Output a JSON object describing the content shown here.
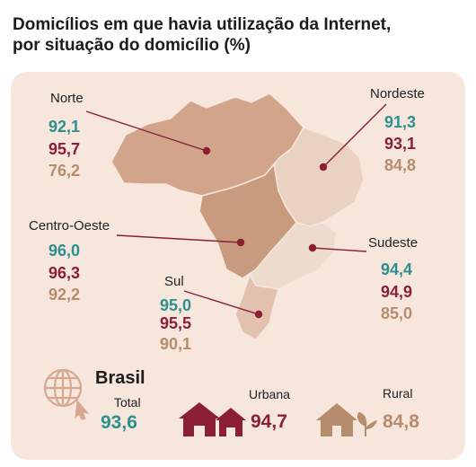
{
  "title_line1": "Domicílios em que havia utilização da Internet,",
  "title_line2": "por situação do domicílio (%)",
  "colors": {
    "urbana": "#2d8f8f",
    "total": "#8a1f35",
    "rural": "#b58d6d",
    "panel": "#f6e6dc"
  },
  "chart_data": {
    "type": "table",
    "unit": "%",
    "regions": [
      {
        "name": "Norte",
        "urbana": "92,1",
        "total": "95,7",
        "rural": "76,2"
      },
      {
        "name": "Nordeste",
        "urbana": "91,3",
        "total": "93,1",
        "rural": "84,8"
      },
      {
        "name": "Centro-Oeste",
        "urbana": "96,0",
        "total": "96,3",
        "rural": "92,2"
      },
      {
        "name": "Sudeste",
        "urbana": "94,4",
        "total": "94,9",
        "rural": "85,0"
      },
      {
        "name": "Sul",
        "urbana": "95,0",
        "total": "95,5",
        "rural": "90,1"
      }
    ],
    "brasil": {
      "label": "Brasil",
      "total_label": "Total",
      "total": "93,6",
      "urbana_label": "Urbana",
      "urbana": "94,7",
      "rural_label": "Rural",
      "rural": "84,8"
    }
  },
  "icons": [
    "globe-cursor-icon",
    "houses-icon",
    "house-plant-icon"
  ]
}
